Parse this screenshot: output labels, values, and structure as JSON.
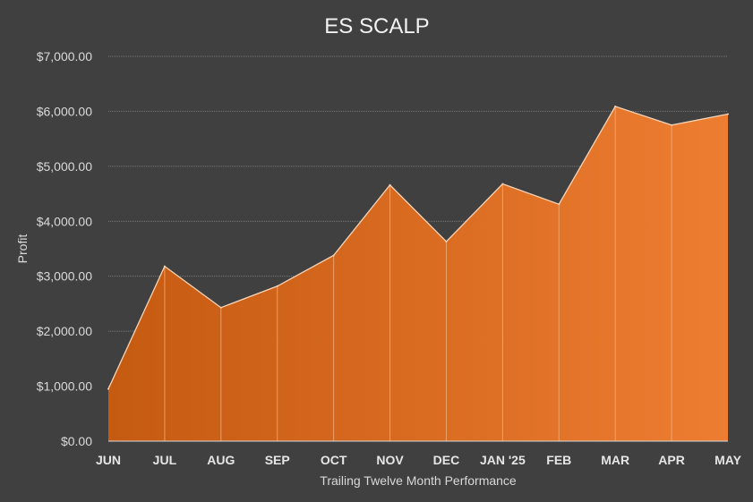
{
  "chart_data": {
    "type": "area",
    "title": "ES SCALP",
    "xlabel": "Trailing Twelve Month Performance",
    "ylabel": "Profit",
    "categories": [
      "JUN",
      "JUL",
      "AUG",
      "SEP",
      "OCT",
      "NOV",
      "DEC",
      "JAN '25",
      "FEB",
      "MAR",
      "APR",
      "MAY"
    ],
    "series": [
      {
        "values": [
          950,
          3180,
          2430,
          2820,
          3380,
          4660,
          3630,
          4680,
          4310,
          6090,
          5750,
          5950
        ],
        "color_start": "#c55a11",
        "color_end": "#ed7d31"
      }
    ],
    "ylim": [
      0,
      7000
    ],
    "yticks": [
      0,
      1000,
      2000,
      3000,
      4000,
      5000,
      6000,
      7000
    ],
    "ytick_labels": [
      "$0.00",
      "$1,000.00",
      "$2,000.00",
      "$3,000.00",
      "$4,000.00",
      "$5,000.00",
      "$6,000.00",
      "$7,000.00"
    ],
    "grid": true,
    "legend": "none"
  },
  "colors": {
    "background": "#404040",
    "area_start": "#c55a11",
    "area_end": "#ed7d31",
    "outline": "#f8d3b4"
  }
}
